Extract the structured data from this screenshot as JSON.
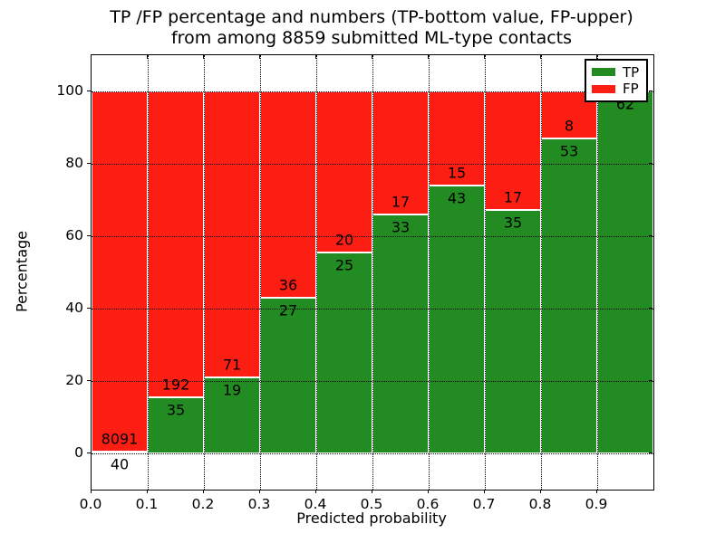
{
  "title": {
    "line1": "TP /FP percentage and numbers (TP-bottom value, FP-upper)",
    "line2": "from among 8859 submitted ML-type contacts"
  },
  "axes": {
    "xlabel": "Predicted probability",
    "ylabel": "Percentage",
    "x_tick_labels": [
      "0.0",
      "0.1",
      "0.2",
      "0.3",
      "0.4",
      "0.5",
      "0.6",
      "0.7",
      "0.8",
      "0.9"
    ],
    "x_tick_values": [
      0.0,
      0.1,
      0.2,
      0.3,
      0.4,
      0.5,
      0.6,
      0.7,
      0.8,
      0.9
    ],
    "y_tick_labels": [
      "0",
      "20",
      "40",
      "60",
      "80",
      "100"
    ],
    "y_tick_values": [
      0,
      20,
      40,
      60,
      80,
      100
    ],
    "xlim": [
      0.0,
      1.0
    ],
    "ylim": [
      -10,
      110
    ],
    "grid": "dotted black, horizontal at y ticks and vertical at x ticks"
  },
  "legend": {
    "position": "upper right",
    "entries": [
      {
        "label": "TP",
        "color": "#228b22"
      },
      {
        "label": "FP",
        "color": "#fc1d13"
      }
    ]
  },
  "colors": {
    "tp_bar": "#228b22",
    "fp_bar": "#fc1d13",
    "bar_edge": "#ffffff",
    "text": "#000000",
    "background": "#ffffff"
  },
  "chart_data": {
    "type": "bar",
    "stacked": true,
    "bar_width": 0.1,
    "series_names": [
      "TP",
      "FP"
    ],
    "bins": [
      {
        "x0": 0.0,
        "x1": 0.1,
        "tp_count": 40,
        "fp_count": 8091,
        "tp_pct": 0.5
      },
      {
        "x0": 0.1,
        "x1": 0.2,
        "tp_count": 35,
        "fp_count": 192,
        "tp_pct": 15.4
      },
      {
        "x0": 0.2,
        "x1": 0.3,
        "tp_count": 19,
        "fp_count": 71,
        "tp_pct": 21.1
      },
      {
        "x0": 0.3,
        "x1": 0.4,
        "tp_count": 27,
        "fp_count": 36,
        "tp_pct": 42.9
      },
      {
        "x0": 0.4,
        "x1": 0.5,
        "tp_count": 25,
        "fp_count": 20,
        "tp_pct": 55.6
      },
      {
        "x0": 0.5,
        "x1": 0.6,
        "tp_count": 33,
        "fp_count": 17,
        "tp_pct": 66.0
      },
      {
        "x0": 0.6,
        "x1": 0.7,
        "tp_count": 43,
        "fp_count": 15,
        "tp_pct": 74.1
      },
      {
        "x0": 0.7,
        "x1": 0.8,
        "tp_count": 35,
        "fp_count": 17,
        "tp_pct": 67.3
      },
      {
        "x0": 0.8,
        "x1": 0.9,
        "tp_count": 53,
        "fp_count": 8,
        "tp_pct": 86.9
      },
      {
        "x0": 0.9,
        "x1": 1.0,
        "tp_count": 62,
        "fp_count": null,
        "tp_pct": 100.0
      }
    ],
    "note": "FP count label of last bin is occluded by the legend; bars stacked to 100%"
  }
}
